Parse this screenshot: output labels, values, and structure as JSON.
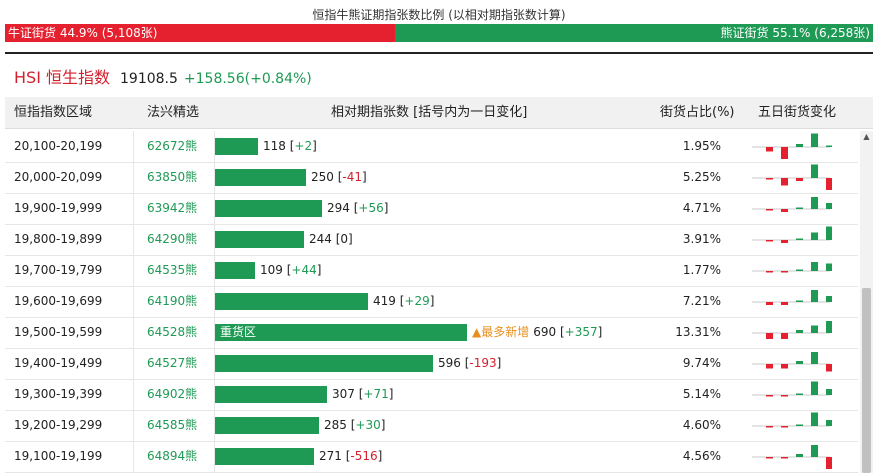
{
  "top_title": "恒指牛熊证期指张数比例 (以相对期指张数计算)",
  "ratio": {
    "bull_label": "牛证街货 44.9% (5,108张)",
    "bear_label": "熊证街货 55.1% (6,258张)",
    "bull_fraction": 0.449,
    "bear_fraction": 0.551,
    "bull_color": "#e5212f",
    "bear_color": "#1f9a55"
  },
  "index": {
    "name": "HSI 恒生指数",
    "price": "19108.5",
    "change": "+158.56(+0.84%)"
  },
  "headers": {
    "range": "恒指指数区域",
    "pick": "法兴精选",
    "contracts": "相对期指张数 [括号内为一日变化]",
    "share": "街货占比(%)",
    "five_day": "五日街货变化"
  },
  "rows": [
    {
      "range": "20,100-20,199",
      "code": "62672熊",
      "value": 118,
      "value_text": "118",
      "delta_text": "+2",
      "delta_sign": "pos",
      "share": "1.95%",
      "five_day": [
        -3,
        -8,
        2,
        9,
        1
      ]
    },
    {
      "range": "20,000-20,099",
      "code": "63850熊",
      "value": 250,
      "value_text": "250",
      "delta_text": "-41",
      "delta_sign": "neg",
      "share": "5.25%",
      "five_day": [
        -1,
        -5,
        -2,
        9,
        -8
      ]
    },
    {
      "range": "19,900-19,999",
      "code": "63942熊",
      "value": 294,
      "value_text": "294",
      "delta_text": "+56",
      "delta_sign": "pos",
      "share": "4.71%",
      "five_day": [
        -1,
        -2,
        1,
        8,
        4
      ]
    },
    {
      "range": "19,800-19,899",
      "code": "64290熊",
      "value": 244,
      "value_text": "244",
      "delta_text": "0",
      "delta_sign": "zero",
      "share": "3.91%",
      "five_day": [
        -1,
        -2,
        1,
        5,
        9
      ]
    },
    {
      "range": "19,700-19,799",
      "code": "64535熊",
      "value": 109,
      "value_text": "109",
      "delta_text": "+44",
      "delta_sign": "pos",
      "share": "1.77%",
      "five_day": [
        -1,
        -1,
        1,
        6,
        5
      ]
    },
    {
      "range": "19,600-19,699",
      "code": "64190熊",
      "value": 419,
      "value_text": "419",
      "delta_text": "+29",
      "delta_sign": "pos",
      "share": "7.21%",
      "five_day": [
        -2,
        -2,
        1,
        8,
        4
      ]
    },
    {
      "range": "19,500-19,599",
      "code": "64528熊",
      "value": 690,
      "value_text": "690",
      "delta_text": "+357",
      "delta_sign": "pos",
      "share": "13.31%",
      "label": "重货区",
      "hot": "最多新增",
      "five_day": [
        -4,
        -4,
        2,
        5,
        8
      ]
    },
    {
      "range": "19,400-19,499",
      "code": "64527熊",
      "value": 596,
      "value_text": "596",
      "delta_text": "-193",
      "delta_sign": "neg",
      "share": "9.74%",
      "five_day": [
        -3,
        -3,
        2,
        8,
        -5
      ]
    },
    {
      "range": "19,300-19,399",
      "code": "64902熊",
      "value": 307,
      "value_text": "307",
      "delta_text": "+71",
      "delta_sign": "pos",
      "share": "5.14%",
      "five_day": [
        -1,
        -1,
        1,
        9,
        4
      ]
    },
    {
      "range": "19,200-19,299",
      "code": "64585熊",
      "value": 285,
      "value_text": "285",
      "delta_text": "+30",
      "delta_sign": "pos",
      "share": "4.60%",
      "five_day": [
        -1,
        -1,
        1,
        9,
        4
      ]
    },
    {
      "range": "19,100-19,199",
      "code": "64894熊",
      "value": 271,
      "value_text": "271",
      "delta_text": "-516",
      "delta_sign": "neg",
      "share": "4.56%",
      "five_day": [
        -1,
        -1,
        2,
        8,
        -8
      ]
    }
  ],
  "max_value": 690
}
